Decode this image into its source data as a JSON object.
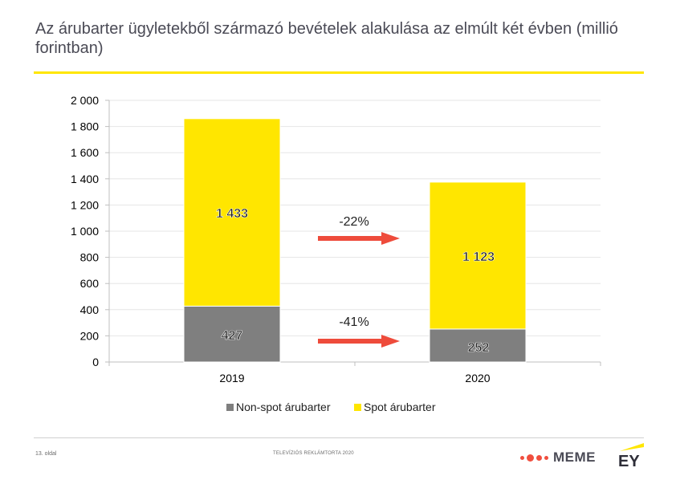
{
  "slide": {
    "title": "Az árubarter ügyletekből származó bevételek alakulása az elmúlt két évben (millió forintban)",
    "page_number": "13. oldal",
    "footer_text": "TELEVÍZIÓS REKLÁMTORTA 2020",
    "logo_meme": "MEME",
    "logo_ey": "EY",
    "accent_color": "#ffe600",
    "arrow_color": "#ee4b3b"
  },
  "chart_data": {
    "type": "bar",
    "stacked": true,
    "categories": [
      "2019",
      "2020"
    ],
    "series": [
      {
        "name": "Non-spot árubarter",
        "values": [
          427,
          252
        ],
        "color": "#7f7f7f"
      },
      {
        "name": "Spot árubarter",
        "values": [
          1433,
          1123
        ],
        "color": "#ffe600"
      }
    ],
    "data_labels": {
      "Non-spot árubarter": [
        "427",
        "252"
      ],
      "Spot árubarter": [
        "1 433",
        "1 123"
      ]
    },
    "changes": [
      {
        "series": "Spot árubarter",
        "label": "-22%"
      },
      {
        "series": "Non-spot árubarter",
        "label": "-41%"
      }
    ],
    "y_ticks": [
      0,
      200,
      400,
      600,
      800,
      1000,
      1200,
      1400,
      1600,
      1800,
      2000
    ],
    "y_tick_labels": [
      "0",
      "200",
      "400",
      "600",
      "800",
      "1 000",
      "1 200",
      "1 400",
      "1 600",
      "1 800",
      "2 000"
    ],
    "ylim": [
      0,
      2000
    ],
    "grid": true,
    "legend_position": "bottom"
  }
}
